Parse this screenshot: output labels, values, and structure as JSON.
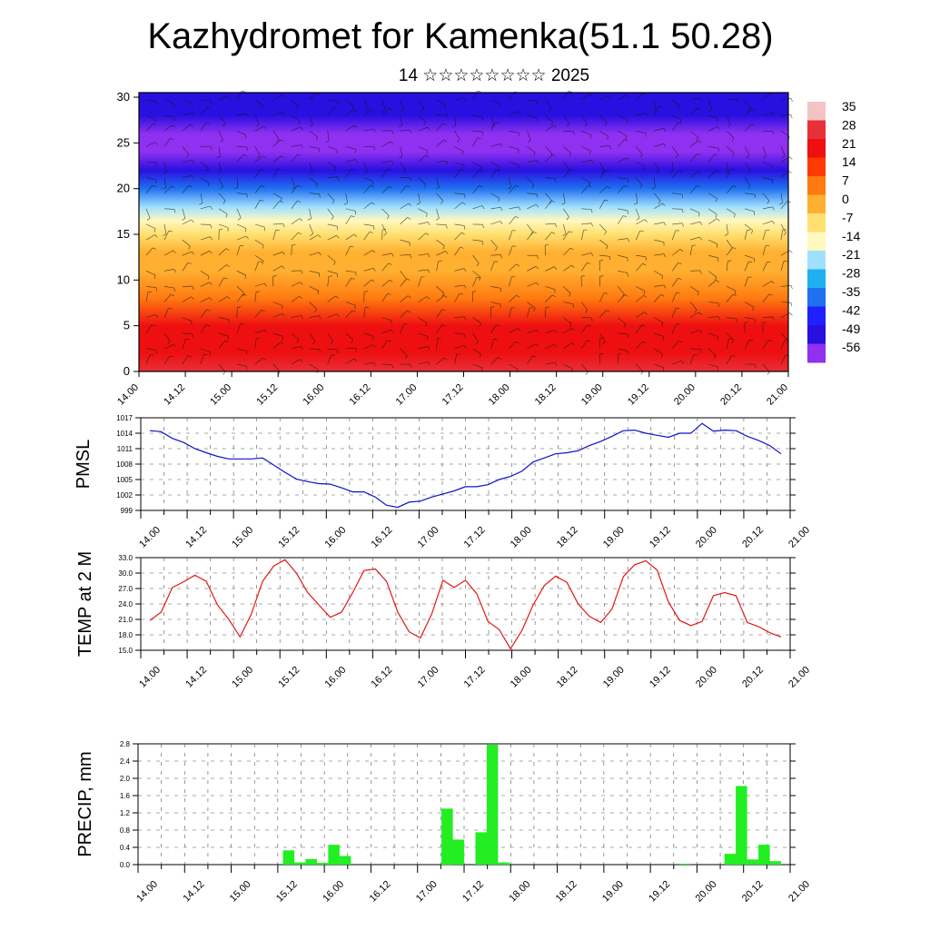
{
  "header": {
    "title": "Kazhydromet for Kamenka(51.1 50.28)",
    "subtitle": "14 ☆☆☆☆☆☆☆☆ 2025"
  },
  "chart_data": [
    {
      "type": "heatmap",
      "title": "",
      "xlabel": "",
      "ylabel": "",
      "x_ticks": [
        "14.00",
        "14.12",
        "15.00",
        "15.12",
        "16.00",
        "16.12",
        "17.00",
        "17.12",
        "18.00",
        "18.12",
        "19.00",
        "19.12",
        "20.00",
        "20.12",
        "21.00"
      ],
      "y_ticks": [
        0,
        5,
        10,
        15,
        20,
        25,
        30
      ],
      "ylim": [
        0,
        30.5
      ],
      "colorbar_labels": [
        "35",
        "28",
        "21",
        "14",
        "7",
        "0",
        "-7",
        "-14",
        "-21",
        "-28",
        "-35",
        "-42",
        "-49",
        "-56"
      ],
      "colorbar_colors": [
        "#f4c4c4",
        "#e8303a",
        "#ee1010",
        "#ff3a00",
        "#ff7a10",
        "#ffb030",
        "#ffe070",
        "#fff8c0",
        "#a0e0ff",
        "#20b0f0",
        "#2070f0",
        "#2020ff",
        "#2810e0",
        "#9030f0"
      ],
      "profile": [
        {
          "level": 0,
          "value": 28
        },
        {
          "level": 2,
          "value": 24
        },
        {
          "level": 5,
          "value": 18
        },
        {
          "level": 8,
          "value": 10
        },
        {
          "level": 11,
          "value": 3
        },
        {
          "level": 13,
          "value": -2
        },
        {
          "level": 15,
          "value": -8
        },
        {
          "level": 16.5,
          "value": -14
        },
        {
          "level": 18,
          "value": -22
        },
        {
          "level": 20,
          "value": -35
        },
        {
          "level": 22,
          "value": -46
        },
        {
          "level": 24,
          "value": -53
        },
        {
          "level": 26,
          "value": -55
        },
        {
          "level": 28,
          "value": -52
        },
        {
          "level": 30.5,
          "value": -50
        }
      ],
      "note_overlay": "wind barbs"
    },
    {
      "type": "line",
      "ylabel": "PMSL",
      "ylim": [
        999,
        1017
      ],
      "y_ticks": [
        "999",
        "1002",
        "1005",
        "1008",
        "1011",
        "1014",
        "1017"
      ],
      "x_ticks": [
        "14.00",
        "14.12",
        "15.00",
        "15.12",
        "16.00",
        "16.12",
        "17.00",
        "17.12",
        "18.00",
        "18.12",
        "19.00",
        "19.12",
        "20.00",
        "20.12",
        "21.00"
      ],
      "color": "#1010c8",
      "x": [
        0,
        3,
        6,
        9,
        12,
        15,
        18,
        21,
        24,
        27,
        30,
        33,
        36,
        39,
        42,
        45,
        48,
        51,
        54,
        57,
        60,
        63,
        66,
        69,
        72,
        75,
        78,
        81,
        84,
        87,
        90,
        93,
        96,
        99,
        102,
        105,
        108,
        111,
        114,
        117,
        120,
        123,
        126,
        129,
        132,
        135,
        138,
        141,
        144,
        147,
        150,
        153,
        156,
        159,
        162,
        165,
        168
      ],
      "values": [
        1014.5,
        1014.3,
        1013.0,
        1012.2,
        1011.0,
        1010.2,
        1009.5,
        1009.0,
        1009.0,
        1009.0,
        1009.2,
        1007.8,
        1006.4,
        1005.1,
        1004.6,
        1004.2,
        1004.1,
        1003.4,
        1002.6,
        1002.6,
        1001.6,
        1000.0,
        999.6,
        1000.6,
        1000.8,
        1001.6,
        1002.2,
        1002.8,
        1003.6,
        1003.6,
        1004.0,
        1005.0,
        1005.6,
        1006.6,
        1008.4,
        1009.2,
        1010.0,
        1010.2,
        1010.6,
        1011.6,
        1012.4,
        1013.4,
        1014.5,
        1014.6,
        1014.0,
        1013.6,
        1013.2,
        1014.0,
        1014.0,
        1015.9,
        1014.4,
        1014.6,
        1014.5,
        1013.4,
        1012.6,
        1011.6,
        1010.0
      ]
    },
    {
      "type": "line",
      "ylabel": "TEMP at 2 M",
      "ylim": [
        15,
        33
      ],
      "y_ticks": [
        "15.0",
        "18.0",
        "21.0",
        "24.0",
        "27.0",
        "30.0",
        "33.0"
      ],
      "x_ticks": [
        "14.00",
        "14.12",
        "15.00",
        "15.12",
        "16.00",
        "16.12",
        "17.00",
        "17.12",
        "18.00",
        "18.12",
        "19.00",
        "19.12",
        "20.00",
        "20.12",
        "21.00"
      ],
      "color": "#e01818",
      "x": [
        0,
        3,
        6,
        9,
        12,
        15,
        18,
        21,
        24,
        27,
        30,
        33,
        36,
        39,
        42,
        45,
        48,
        51,
        54,
        57,
        60,
        63,
        66,
        69,
        72,
        75,
        78,
        81,
        84,
        87,
        90,
        93,
        96,
        99,
        102,
        105,
        108,
        111,
        114,
        117,
        120,
        123,
        126,
        129,
        132,
        135,
        138,
        141,
        144,
        147,
        150,
        153,
        156,
        159,
        162,
        165,
        168
      ],
      "values": [
        20.8,
        22.4,
        27.2,
        28.3,
        29.6,
        28.4,
        23.8,
        21.0,
        17.6,
        22.0,
        28.4,
        31.4,
        32.6,
        30.0,
        26.2,
        23.8,
        21.4,
        22.4,
        26.2,
        30.5,
        30.8,
        28.4,
        22.4,
        18.6,
        17.4,
        22.0,
        28.6,
        27.2,
        28.6,
        26.0,
        20.6,
        19.0,
        15.3,
        18.8,
        23.8,
        27.6,
        29.4,
        28.2,
        24.0,
        21.6,
        20.4,
        23.0,
        29.3,
        31.6,
        32.4,
        30.6,
        24.4,
        20.8,
        19.8,
        20.6,
        25.6,
        26.2,
        25.6,
        20.4,
        19.6,
        18.4,
        17.6
      ]
    },
    {
      "type": "bar",
      "ylabel": "PRECIP, mm",
      "ylim": [
        0,
        2.8
      ],
      "y_ticks": [
        "0.0",
        "0.4",
        "0.8",
        "1.2",
        "1.6",
        "2.0",
        "2.4",
        "2.8"
      ],
      "x_ticks": [
        "14.00",
        "14.12",
        "15.00",
        "15.12",
        "16.00",
        "16.12",
        "17.00",
        "17.12",
        "18.00",
        "18.12",
        "19.00",
        "19.12",
        "20.00",
        "20.12",
        "21.00"
      ],
      "color": "#22ee22",
      "bar_hours": [
        39,
        42,
        45,
        48,
        51,
        54,
        81,
        84,
        90,
        93,
        96,
        144,
        156,
        159,
        162,
        165,
        168
      ],
      "values": [
        0.33,
        0.05,
        0.13,
        0.04,
        0.46,
        0.2,
        1.3,
        0.58,
        0.75,
        2.78,
        0.05,
        0.02,
        0.25,
        1.82,
        0.12,
        0.46,
        0.08
      ]
    }
  ]
}
